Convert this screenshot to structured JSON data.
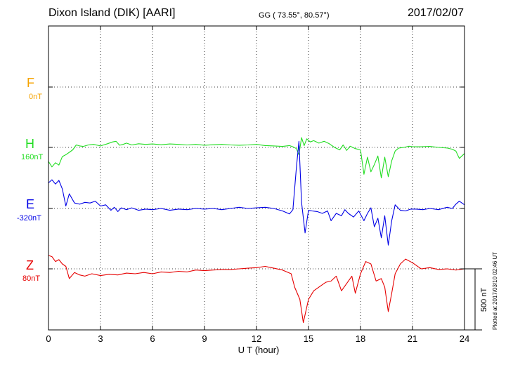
{
  "header": {
    "station": "Dixon Island (DIK)  [AARI]",
    "coords": "GG ( 73.55°,  80.57°)",
    "date": "2017/02/07"
  },
  "plotted_note": "Plotted at 2017/03/10 02:46 UT",
  "chart_data": {
    "type": "line",
    "xlabel": "U T (hour)",
    "xlim": [
      0,
      24
    ],
    "xticks": [
      "0",
      "3",
      "6",
      "9",
      "12",
      "15",
      "18",
      "21",
      "24"
    ],
    "scale_bar_label": "500 nT",
    "grid": "dotted",
    "series": [
      {
        "name": "F",
        "base_label": "0nT",
        "color": "#f5a300",
        "x": [],
        "y": []
      },
      {
        "name": "H",
        "base_label": "160nT",
        "color": "#22dd22",
        "x": [
          0,
          0.2,
          0.4,
          0.6,
          0.8,
          1.0,
          1.2,
          1.4,
          1.6,
          1.8,
          2.0,
          2.3,
          2.6,
          3.0,
          3.4,
          3.7,
          3.9,
          4.1,
          4.3,
          4.5,
          4.8,
          5.2,
          5.6,
          6.0,
          6.5,
          7.0,
          7.5,
          8.0,
          8.5,
          9.0,
          9.5,
          10.0,
          10.5,
          11.0,
          11.5,
          12.0,
          12.5,
          13.0,
          13.5,
          13.9,
          14.1,
          14.3,
          14.45,
          14.6,
          14.75,
          14.9,
          15.1,
          15.3,
          15.6,
          15.9,
          16.2,
          16.5,
          16.8,
          17.0,
          17.2,
          17.4,
          17.7,
          18.0,
          18.2,
          18.4,
          18.6,
          18.8,
          19.0,
          19.2,
          19.4,
          19.6,
          19.8,
          20.0,
          20.2,
          20.5,
          20.8,
          21.0,
          21.5,
          22.0,
          22.5,
          23.0,
          23.3,
          23.5,
          23.7,
          24.0
        ],
        "y": [
          -115,
          -160,
          -125,
          -145,
          -75,
          -60,
          -40,
          -20,
          20,
          12,
          8,
          20,
          25,
          12,
          30,
          45,
          50,
          18,
          25,
          35,
          20,
          30,
          25,
          28,
          22,
          28,
          25,
          20,
          25,
          18,
          22,
          25,
          20,
          18,
          20,
          25,
          15,
          12,
          8,
          15,
          5,
          -10,
          -60,
          80,
          15,
          70,
          45,
          55,
          35,
          50,
          30,
          0,
          -20,
          20,
          -25,
          10,
          -10,
          -20,
          -220,
          -80,
          -200,
          -140,
          -70,
          -250,
          -80,
          -240,
          -110,
          -30,
          -5,
          0,
          10,
          5,
          5,
          8,
          0,
          -5,
          -15,
          -30,
          -90,
          -50
        ]
      },
      {
        "name": "E",
        "base_label": "-320nT",
        "color": "#0000e6",
        "x": [
          0,
          0.2,
          0.4,
          0.6,
          0.8,
          1.0,
          1.2,
          1.5,
          1.8,
          2.1,
          2.4,
          2.7,
          3.0,
          3.3,
          3.6,
          3.8,
          4.0,
          4.2,
          4.5,
          4.8,
          5.2,
          5.6,
          6.0,
          6.5,
          7.0,
          7.5,
          8.0,
          8.5,
          9.0,
          9.5,
          10.0,
          10.5,
          11.0,
          11.5,
          12.0,
          12.5,
          13.0,
          13.5,
          13.9,
          14.1,
          14.3,
          14.45,
          14.6,
          14.8,
          15.0,
          15.2,
          15.5,
          15.8,
          16.1,
          16.3,
          16.6,
          16.9,
          17.1,
          17.3,
          17.6,
          17.9,
          18.2,
          18.4,
          18.6,
          18.8,
          19.0,
          19.2,
          19.4,
          19.6,
          19.8,
          20.0,
          20.3,
          20.6,
          20.9,
          21.2,
          21.6,
          22.0,
          22.5,
          23.0,
          23.3,
          23.5,
          23.7,
          24.0
        ],
        "y": [
          210,
          235,
          200,
          230,
          160,
          20,
          120,
          45,
          35,
          50,
          45,
          60,
          20,
          30,
          -15,
          10,
          -25,
          5,
          -10,
          5,
          -15,
          -5,
          -10,
          0,
          -15,
          -5,
          -10,
          0,
          -5,
          0,
          -10,
          0,
          10,
          0,
          5,
          10,
          0,
          -20,
          -45,
          -10,
          330,
          550,
          50,
          -200,
          -15,
          -20,
          -25,
          -40,
          -20,
          -100,
          -40,
          -60,
          -10,
          -40,
          -70,
          -20,
          -100,
          -40,
          5,
          -150,
          -80,
          -240,
          -60,
          -300,
          -100,
          30,
          -15,
          -20,
          -5,
          -5,
          -10,
          0,
          -10,
          10,
          0,
          35,
          60,
          30
        ]
      },
      {
        "name": "Z",
        "base_label": "80nT",
        "color": "#e60000",
        "x": [
          0,
          0.2,
          0.4,
          0.6,
          0.8,
          1.0,
          1.2,
          1.5,
          1.8,
          2.1,
          2.5,
          3.0,
          3.5,
          4.0,
          4.5,
          5.0,
          5.5,
          6.0,
          6.5,
          7.0,
          7.5,
          8.0,
          8.5,
          9.0,
          9.5,
          10.0,
          10.5,
          11.0,
          11.5,
          12.0,
          12.5,
          13.0,
          13.5,
          14.0,
          14.2,
          14.5,
          14.7,
          15.0,
          15.3,
          15.6,
          16.0,
          16.3,
          16.6,
          16.9,
          17.2,
          17.5,
          17.7,
          18.0,
          18.3,
          18.6,
          18.9,
          19.2,
          19.4,
          19.6,
          19.8,
          20.0,
          20.3,
          20.6,
          21.0,
          21.5,
          22.0,
          22.5,
          23.0,
          23.5,
          24.0
        ],
        "y": [
          110,
          100,
          60,
          75,
          40,
          20,
          -80,
          -30,
          -50,
          -60,
          -40,
          -55,
          -45,
          -50,
          -35,
          -40,
          -30,
          -40,
          -25,
          -30,
          -20,
          -25,
          -10,
          -15,
          -10,
          -5,
          -5,
          0,
          5,
          10,
          20,
          5,
          -10,
          -40,
          -150,
          -250,
          -440,
          -250,
          -180,
          -150,
          -110,
          -100,
          -60,
          -180,
          -120,
          -60,
          -200,
          -40,
          60,
          40,
          -100,
          -80,
          -150,
          -350,
          -200,
          -40,
          40,
          80,
          50,
          0,
          10,
          -5,
          0,
          -10,
          0
        ]
      }
    ]
  }
}
